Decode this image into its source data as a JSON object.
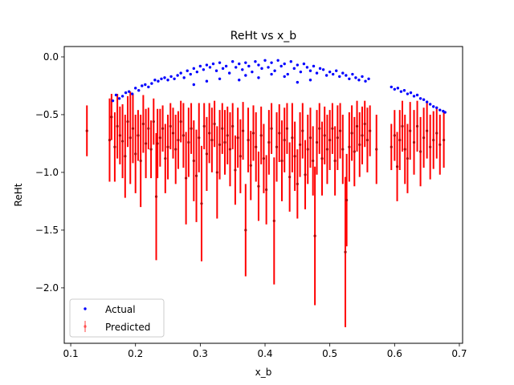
{
  "chart_data": {
    "type": "scatter",
    "title": "ReHt vs x_b",
    "xlabel": "x_b",
    "ylabel": "ReHt",
    "xlim": [
      0.09,
      0.705
    ],
    "ylim": [
      -2.48,
      0.09
    ],
    "xticks": [
      0.1,
      0.2,
      0.3,
      0.4,
      0.5,
      0.6,
      0.7
    ],
    "xtick_labels": [
      "0.1",
      "0.2",
      "0.3",
      "0.4",
      "0.5",
      "0.6",
      "0.7"
    ],
    "yticks": [
      0.0,
      -0.5,
      -1.0,
      -1.5,
      -2.0
    ],
    "ytick_labels": [
      "0.0",
      "−0.5",
      "−1.0",
      "−1.5",
      "−2.0"
    ],
    "grid": false,
    "legend_position": "lower-left",
    "series": [
      {
        "name": "Actual",
        "kind": "scatter",
        "color": "#0000ff",
        "points": [
          [
            0.165,
            -0.38
          ],
          [
            0.17,
            -0.33
          ],
          [
            0.175,
            -0.36
          ],
          [
            0.18,
            -0.34
          ],
          [
            0.185,
            -0.31
          ],
          [
            0.19,
            -0.3
          ],
          [
            0.195,
            -0.32
          ],
          [
            0.2,
            -0.27
          ],
          [
            0.205,
            -0.29
          ],
          [
            0.21,
            -0.25
          ],
          [
            0.215,
            -0.24
          ],
          [
            0.22,
            -0.26
          ],
          [
            0.225,
            -0.23
          ],
          [
            0.23,
            -0.2
          ],
          [
            0.235,
            -0.21
          ],
          [
            0.24,
            -0.19
          ],
          [
            0.245,
            -0.18
          ],
          [
            0.25,
            -0.2
          ],
          [
            0.255,
            -0.17
          ],
          [
            0.26,
            -0.19
          ],
          [
            0.265,
            -0.16
          ],
          [
            0.27,
            -0.14
          ],
          [
            0.275,
            -0.18
          ],
          [
            0.28,
            -0.12
          ],
          [
            0.285,
            -0.15
          ],
          [
            0.29,
            -0.1
          ],
          [
            0.295,
            -0.13
          ],
          [
            0.3,
            -0.08
          ],
          [
            0.305,
            -0.11
          ],
          [
            0.31,
            -0.07
          ],
          [
            0.315,
            -0.09
          ],
          [
            0.32,
            -0.06
          ],
          [
            0.325,
            -0.12
          ],
          [
            0.33,
            -0.05
          ],
          [
            0.335,
            -0.1
          ],
          [
            0.34,
            -0.08
          ],
          [
            0.345,
            -0.14
          ],
          [
            0.35,
            -0.04
          ],
          [
            0.355,
            -0.09
          ],
          [
            0.36,
            -0.06
          ],
          [
            0.365,
            -0.11
          ],
          [
            0.37,
            -0.05
          ],
          [
            0.375,
            -0.08
          ],
          [
            0.38,
            -0.13
          ],
          [
            0.385,
            -0.04
          ],
          [
            0.39,
            -0.07
          ],
          [
            0.395,
            -0.1
          ],
          [
            0.4,
            -0.03
          ],
          [
            0.405,
            -0.09
          ],
          [
            0.41,
            -0.05
          ],
          [
            0.415,
            -0.12
          ],
          [
            0.42,
            -0.03
          ],
          [
            0.425,
            -0.08
          ],
          [
            0.43,
            -0.06
          ],
          [
            0.435,
            -0.15
          ],
          [
            0.44,
            -0.04
          ],
          [
            0.445,
            -0.1
          ],
          [
            0.45,
            -0.07
          ],
          [
            0.455,
            -0.13
          ],
          [
            0.46,
            -0.06
          ],
          [
            0.465,
            -0.09
          ],
          [
            0.47,
            -0.12
          ],
          [
            0.475,
            -0.08
          ],
          [
            0.48,
            -0.14
          ],
          [
            0.485,
            -0.1
          ],
          [
            0.49,
            -0.11
          ],
          [
            0.495,
            -0.16
          ],
          [
            0.5,
            -0.13
          ],
          [
            0.505,
            -0.15
          ],
          [
            0.51,
            -0.12
          ],
          [
            0.515,
            -0.17
          ],
          [
            0.52,
            -0.14
          ],
          [
            0.525,
            -0.16
          ],
          [
            0.53,
            -0.19
          ],
          [
            0.535,
            -0.15
          ],
          [
            0.54,
            -0.18
          ],
          [
            0.545,
            -0.2
          ],
          [
            0.55,
            -0.17
          ],
          [
            0.555,
            -0.21
          ],
          [
            0.56,
            -0.19
          ],
          [
            0.595,
            -0.26
          ],
          [
            0.6,
            -0.28
          ],
          [
            0.605,
            -0.27
          ],
          [
            0.61,
            -0.3
          ],
          [
            0.615,
            -0.29
          ],
          [
            0.62,
            -0.32
          ],
          [
            0.625,
            -0.31
          ],
          [
            0.63,
            -0.34
          ],
          [
            0.635,
            -0.33
          ],
          [
            0.64,
            -0.36
          ],
          [
            0.645,
            -0.37
          ],
          [
            0.65,
            -0.39
          ],
          [
            0.655,
            -0.41
          ],
          [
            0.66,
            -0.43
          ],
          [
            0.665,
            -0.44
          ],
          [
            0.67,
            -0.46
          ],
          [
            0.675,
            -0.47
          ],
          [
            0.678,
            -0.48
          ],
          [
            0.31,
            -0.21
          ],
          [
            0.33,
            -0.19
          ],
          [
            0.37,
            -0.16
          ],
          [
            0.39,
            -0.18
          ],
          [
            0.43,
            -0.17
          ],
          [
            0.47,
            -0.2
          ],
          [
            0.29,
            -0.24
          ],
          [
            0.41,
            -0.15
          ],
          [
            0.36,
            -0.2
          ],
          [
            0.45,
            -0.22
          ]
        ]
      },
      {
        "name": "Predicted",
        "kind": "errorbar",
        "color": "#ff0000",
        "points": [
          [
            0.125,
            -0.64,
            0.22
          ],
          [
            0.16,
            -0.72,
            0.36
          ],
          [
            0.163,
            -0.52,
            0.2
          ],
          [
            0.168,
            -0.78,
            0.3
          ],
          [
            0.172,
            -0.6,
            0.28
          ],
          [
            0.176,
            -0.68,
            0.25
          ],
          [
            0.18,
            -0.73,
            0.32
          ],
          [
            0.184,
            -0.86,
            0.36
          ],
          [
            0.188,
            -0.56,
            0.22
          ],
          [
            0.192,
            -0.7,
            0.4
          ],
          [
            0.196,
            -0.62,
            0.3
          ],
          [
            0.2,
            -0.84,
            0.34
          ],
          [
            0.204,
            -0.68,
            0.22
          ],
          [
            0.208,
            -0.9,
            0.4
          ],
          [
            0.212,
            -0.58,
            0.25
          ],
          [
            0.216,
            -0.75,
            0.3
          ],
          [
            0.22,
            -0.62,
            0.18
          ],
          [
            0.224,
            -0.8,
            0.25
          ],
          [
            0.228,
            -0.56,
            0.2
          ],
          [
            0.232,
            -1.21,
            0.55
          ],
          [
            0.234,
            -0.75,
            0.3
          ],
          [
            0.238,
            -0.7,
            0.25
          ],
          [
            0.242,
            -0.62,
            0.2
          ],
          [
            0.246,
            -0.88,
            0.3
          ],
          [
            0.25,
            -0.78,
            0.28
          ],
          [
            0.254,
            -0.6,
            0.2
          ],
          [
            0.258,
            -0.66,
            0.22
          ],
          [
            0.262,
            -0.8,
            0.3
          ],
          [
            0.266,
            -0.72,
            0.25
          ],
          [
            0.27,
            -0.56,
            0.18
          ],
          [
            0.274,
            -0.68,
            0.28
          ],
          [
            0.278,
            -1.05,
            0.4
          ],
          [
            0.282,
            -0.74,
            0.3
          ],
          [
            0.286,
            -0.62,
            0.22
          ],
          [
            0.29,
            -0.9,
            0.35
          ],
          [
            0.294,
            -1.03,
            0.4
          ],
          [
            0.298,
            -0.7,
            0.3
          ],
          [
            0.302,
            -1.27,
            0.5
          ],
          [
            0.306,
            -0.6,
            0.2
          ],
          [
            0.31,
            -0.84,
            0.32
          ],
          [
            0.314,
            -0.66,
            0.26
          ],
          [
            0.318,
            -0.72,
            0.28
          ],
          [
            0.322,
            -0.58,
            0.2
          ],
          [
            0.326,
            -1.0,
            0.4
          ],
          [
            0.33,
            -0.76,
            0.3
          ],
          [
            0.334,
            -0.62,
            0.22
          ],
          [
            0.338,
            -0.74,
            0.28
          ],
          [
            0.342,
            -0.68,
            0.25
          ],
          [
            0.346,
            -0.8,
            0.32
          ],
          [
            0.35,
            -0.6,
            0.2
          ],
          [
            0.354,
            -0.98,
            0.3
          ],
          [
            0.358,
            -0.7,
            0.26
          ],
          [
            0.362,
            -0.86,
            0.32
          ],
          [
            0.366,
            -0.64,
            0.25
          ],
          [
            0.37,
            -1.5,
            0.4
          ],
          [
            0.374,
            -0.72,
            0.28
          ],
          [
            0.378,
            -0.94,
            0.3
          ],
          [
            0.382,
            -0.66,
            0.24
          ],
          [
            0.386,
            -0.78,
            0.3
          ],
          [
            0.39,
            -1.12,
            0.3
          ],
          [
            0.394,
            -0.68,
            0.25
          ],
          [
            0.398,
            -0.88,
            0.3
          ],
          [
            0.402,
            -1.15,
            0.3
          ],
          [
            0.406,
            -0.74,
            0.28
          ],
          [
            0.41,
            -0.62,
            0.22
          ],
          [
            0.414,
            -1.42,
            0.55
          ],
          [
            0.418,
            -0.78,
            0.3
          ],
          [
            0.422,
            -0.66,
            0.25
          ],
          [
            0.426,
            -0.9,
            0.35
          ],
          [
            0.43,
            -0.72,
            0.28
          ],
          [
            0.434,
            -0.62,
            0.22
          ],
          [
            0.438,
            -1.04,
            0.3
          ],
          [
            0.442,
            -0.7,
            0.3
          ],
          [
            0.446,
            -0.86,
            0.3
          ],
          [
            0.45,
            -1.1,
            0.3
          ],
          [
            0.454,
            -0.76,
            0.28
          ],
          [
            0.458,
            -0.64,
            0.24
          ],
          [
            0.462,
            -1.02,
            0.3
          ],
          [
            0.466,
            -0.8,
            0.3
          ],
          [
            0.47,
            -0.7,
            0.26
          ],
          [
            0.474,
            -0.9,
            0.3
          ],
          [
            0.477,
            -1.55,
            0.6
          ],
          [
            0.48,
            -0.74,
            0.28
          ],
          [
            0.484,
            -0.62,
            0.22
          ],
          [
            0.488,
            -0.88,
            0.32
          ],
          [
            0.492,
            -0.68,
            0.25
          ],
          [
            0.496,
            -0.8,
            0.3
          ],
          [
            0.5,
            -0.72,
            0.26
          ],
          [
            0.504,
            -0.62,
            0.22
          ],
          [
            0.508,
            -0.9,
            0.3
          ],
          [
            0.512,
            -0.7,
            0.28
          ],
          [
            0.516,
            -0.64,
            0.24
          ],
          [
            0.52,
            -0.8,
            0.3
          ],
          [
            0.524,
            -1.69,
            0.65
          ],
          [
            0.526,
            -1.24,
            0.4
          ],
          [
            0.53,
            -0.78,
            0.3
          ],
          [
            0.534,
            -0.66,
            0.24
          ],
          [
            0.538,
            -0.82,
            0.3
          ],
          [
            0.542,
            -0.6,
            0.22
          ],
          [
            0.546,
            -0.76,
            0.28
          ],
          [
            0.55,
            -0.68,
            0.25
          ],
          [
            0.554,
            -0.58,
            0.2
          ],
          [
            0.558,
            -0.72,
            0.28
          ],
          [
            0.562,
            -0.64,
            0.22
          ],
          [
            0.572,
            -0.8,
            0.3
          ],
          [
            0.595,
            -0.78,
            0.2
          ],
          [
            0.6,
            -0.68,
            0.22
          ],
          [
            0.604,
            -0.95,
            0.3
          ],
          [
            0.608,
            -0.72,
            0.26
          ],
          [
            0.612,
            -0.6,
            0.22
          ],
          [
            0.616,
            -0.8,
            0.3
          ],
          [
            0.62,
            -0.88,
            0.3
          ],
          [
            0.624,
            -0.64,
            0.25
          ],
          [
            0.63,
            -0.74,
            0.28
          ],
          [
            0.635,
            -0.6,
            0.22
          ],
          [
            0.64,
            -0.82,
            0.3
          ],
          [
            0.645,
            -0.7,
            0.26
          ],
          [
            0.65,
            -0.64,
            0.24
          ],
          [
            0.655,
            -0.78,
            0.28
          ],
          [
            0.66,
            -0.72,
            0.25
          ],
          [
            0.665,
            -0.66,
            0.22
          ],
          [
            0.67,
            -0.76,
            0.26
          ],
          [
            0.676,
            -0.72,
            0.24
          ]
        ]
      }
    ]
  }
}
